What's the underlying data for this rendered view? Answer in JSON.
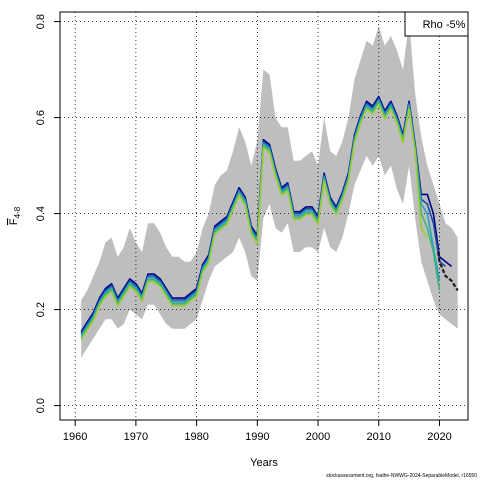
{
  "chart_data": {
    "type": "line",
    "xlabel": "Years",
    "ylabel_main": "F",
    "ylabel_sub": "4-8",
    "xlim": [
      1957.5,
      2024.7
    ],
    "ylim": [
      -0.03,
      0.82
    ],
    "xticks": [
      1960,
      1970,
      1980,
      1990,
      2000,
      2010,
      2020
    ],
    "yticks": [
      0.0,
      0.2,
      0.4,
      0.6,
      0.8
    ],
    "ytick_labels": [
      "0.0",
      "0.2",
      "0.4",
      "0.6",
      "0.8"
    ],
    "grid": true,
    "legend": {
      "placement": "top-right",
      "text": "Rho -5%"
    },
    "footer": "stockassessment.org, fsalhe-NWWG-2024-SeparableModel, r16550",
    "band_color": "#bebebe",
    "band": {
      "x": [
        1961,
        1962,
        1963,
        1964,
        1965,
        1966,
        1967,
        1968,
        1969,
        1970,
        1971,
        1972,
        1973,
        1974,
        1975,
        1976,
        1977,
        1978,
        1979,
        1980,
        1981,
        1982,
        1983,
        1984,
        1985,
        1986,
        1987,
        1988,
        1989,
        1990,
        1991,
        1992,
        1993,
        1994,
        1995,
        1996,
        1997,
        1998,
        1999,
        2000,
        2001,
        2002,
        2003,
        2004,
        2005,
        2006,
        2007,
        2008,
        2009,
        2010,
        2011,
        2012,
        2013,
        2014,
        2015,
        2016,
        2017,
        2018,
        2019,
        2020,
        2021,
        2022,
        2023
      ],
      "upper": [
        0.22,
        0.24,
        0.27,
        0.3,
        0.34,
        0.35,
        0.31,
        0.33,
        0.37,
        0.34,
        0.32,
        0.38,
        0.38,
        0.36,
        0.33,
        0.31,
        0.31,
        0.3,
        0.3,
        0.32,
        0.37,
        0.4,
        0.46,
        0.48,
        0.49,
        0.53,
        0.58,
        0.55,
        0.5,
        0.55,
        0.7,
        0.69,
        0.6,
        0.58,
        0.58,
        0.51,
        0.51,
        0.52,
        0.53,
        0.5,
        0.6,
        0.53,
        0.52,
        0.55,
        0.6,
        0.68,
        0.72,
        0.76,
        0.75,
        0.79,
        0.75,
        0.77,
        0.74,
        0.7,
        0.8,
        0.65,
        0.56,
        0.5,
        0.46,
        0.42,
        0.38,
        0.37,
        0.35
      ],
      "lower": [
        0.1,
        0.12,
        0.14,
        0.16,
        0.18,
        0.18,
        0.16,
        0.17,
        0.2,
        0.19,
        0.18,
        0.21,
        0.21,
        0.19,
        0.17,
        0.16,
        0.16,
        0.16,
        0.17,
        0.18,
        0.22,
        0.26,
        0.29,
        0.3,
        0.31,
        0.32,
        0.35,
        0.32,
        0.27,
        0.26,
        0.39,
        0.42,
        0.37,
        0.36,
        0.38,
        0.32,
        0.32,
        0.33,
        0.33,
        0.32,
        0.37,
        0.33,
        0.32,
        0.35,
        0.4,
        0.46,
        0.49,
        0.52,
        0.5,
        0.52,
        0.48,
        0.5,
        0.45,
        0.42,
        0.5,
        0.39,
        0.3,
        0.26,
        0.22,
        0.19,
        0.18,
        0.17,
        0.16
      ]
    },
    "base_years": [
      1961,
      1962,
      1963,
      1964,
      1965,
      1966,
      1967,
      1968,
      1969,
      1970,
      1971,
      1972,
      1973,
      1974,
      1975,
      1976,
      1977,
      1978,
      1979,
      1980,
      1981,
      1982,
      1983,
      1984,
      1985,
      1986,
      1987,
      1988,
      1989,
      1990,
      1991,
      1992,
      1993,
      1994,
      1995,
      1996,
      1997,
      1998,
      1999,
      2000,
      2001,
      2002,
      2003,
      2004,
      2005,
      2006,
      2007,
      2008,
      2009,
      2010,
      2011,
      2012,
      2013,
      2014,
      2015,
      2016
    ],
    "base_values": [
      0.15,
      0.17,
      0.19,
      0.22,
      0.24,
      0.25,
      0.22,
      0.24,
      0.26,
      0.25,
      0.23,
      0.27,
      0.27,
      0.26,
      0.24,
      0.22,
      0.22,
      0.22,
      0.23,
      0.24,
      0.29,
      0.31,
      0.37,
      0.38,
      0.39,
      0.42,
      0.45,
      0.43,
      0.37,
      0.35,
      0.55,
      0.54,
      0.49,
      0.45,
      0.46,
      0.4,
      0.4,
      0.41,
      0.41,
      0.39,
      0.48,
      0.43,
      0.41,
      0.44,
      0.48,
      0.56,
      0.6,
      0.63,
      0.62,
      0.64,
      0.61,
      0.63,
      0.6,
      0.56,
      0.63,
      0.54
    ],
    "series": [
      {
        "color": "#00008b",
        "offset": 0.004,
        "tail_years": [
          2017,
          2018,
          2019,
          2020,
          2021,
          2022
        ],
        "tail": [
          0.44,
          0.44,
          0.4,
          0.31,
          0.3,
          0.29
        ]
      },
      {
        "color": "#1a4fa0",
        "offset": 0.0,
        "tail_years": [
          2017,
          2018,
          2019,
          2020,
          2021
        ],
        "tail": [
          0.43,
          0.42,
          0.38,
          0.3,
          0.29
        ]
      },
      {
        "color": "#2aa0c8",
        "offset": -0.004,
        "tail_years": [
          2017,
          2018,
          2019,
          2020
        ],
        "tail": [
          0.42,
          0.4,
          0.33,
          0.26
        ]
      },
      {
        "color": "#3cb371",
        "offset": -0.008,
        "tail_years": [
          2017,
          2018,
          2019,
          2020
        ],
        "tail": [
          0.4,
          0.37,
          0.32,
          0.24
        ]
      },
      {
        "color": "#9acd32",
        "offset": -0.012,
        "tail_years": [
          2017,
          2018
        ],
        "tail": [
          0.37,
          0.35
        ]
      }
    ],
    "terminal": {
      "color": "#1a1a1a",
      "x": [
        2019.8,
        2020,
        2021,
        2022,
        2023
      ],
      "y": [
        0.32,
        0.3,
        0.27,
        0.26,
        0.24
      ]
    }
  }
}
